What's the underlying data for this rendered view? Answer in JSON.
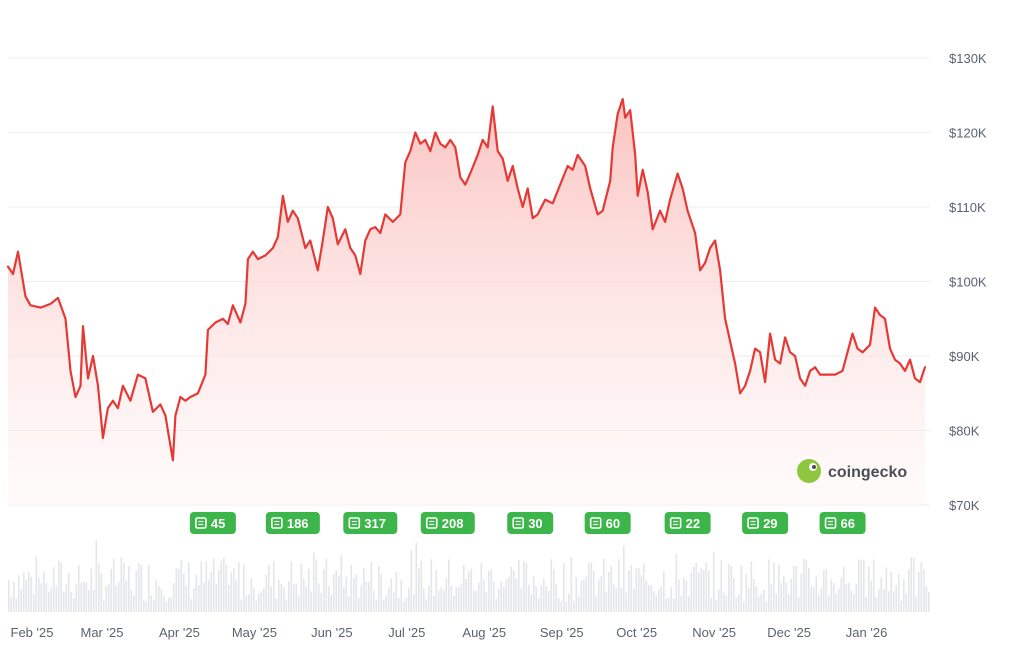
{
  "brand": {
    "name": "coingecko",
    "icon": "coingecko-gecko-logo"
  },
  "colors": {
    "line": "#e53935",
    "fill_top": "#f9b9b6",
    "fill_bottom": "#fff5f5",
    "badge": "#3cb54a",
    "volume": "#e4e6ea"
  },
  "chart_data": {
    "type": "area",
    "ylim": [
      70000,
      130000
    ],
    "y_ticks": [
      "$130K",
      "$120K",
      "$110K",
      "$100K",
      "$90K",
      "$80K",
      "$70K"
    ],
    "y_tick_values": [
      130000,
      120000,
      110000,
      100000,
      90000,
      80000,
      70000
    ],
    "x_ticks": [
      "Feb '25",
      "Mar '25",
      "Apr '25",
      "May '25",
      "Jun '25",
      "Jul '25",
      "Aug '25",
      "Sep '25",
      "Oct '25",
      "Nov '25",
      "Dec '25",
      "Jan '26"
    ],
    "x_range": [
      "2025-02-01",
      "2026-02-05"
    ],
    "grid": true,
    "series": [
      {
        "points": [
          [
            "2025-02-01",
            102000
          ],
          [
            "2025-02-03",
            101000
          ],
          [
            "2025-02-05",
            104000
          ],
          [
            "2025-02-08",
            98000
          ],
          [
            "2025-02-10",
            96800
          ],
          [
            "2025-02-14",
            96500
          ],
          [
            "2025-02-18",
            97000
          ],
          [
            "2025-02-21",
            97800
          ],
          [
            "2025-02-24",
            95000
          ],
          [
            "2025-02-26",
            88000
          ],
          [
            "2025-02-28",
            84500
          ],
          [
            "2025-03-02",
            86000
          ],
          [
            "2025-03-03",
            94000
          ],
          [
            "2025-03-05",
            87000
          ],
          [
            "2025-03-07",
            90000
          ],
          [
            "2025-03-09",
            86000
          ],
          [
            "2025-03-11",
            79000
          ],
          [
            "2025-03-13",
            83000
          ],
          [
            "2025-03-15",
            84000
          ],
          [
            "2025-03-17",
            83000
          ],
          [
            "2025-03-19",
            86000
          ],
          [
            "2025-03-22",
            84000
          ],
          [
            "2025-03-25",
            87500
          ],
          [
            "2025-03-28",
            87000
          ],
          [
            "2025-03-31",
            82500
          ],
          [
            "2025-04-03",
            83500
          ],
          [
            "2025-04-05",
            82000
          ],
          [
            "2025-04-07",
            78000
          ],
          [
            "2025-04-08",
            76000
          ],
          [
            "2025-04-09",
            82000
          ],
          [
            "2025-04-11",
            84500
          ],
          [
            "2025-04-13",
            84000
          ],
          [
            "2025-04-15",
            84500
          ],
          [
            "2025-04-18",
            85000
          ],
          [
            "2025-04-21",
            87500
          ],
          [
            "2025-04-22",
            93500
          ],
          [
            "2025-04-25",
            94500
          ],
          [
            "2025-04-28",
            95000
          ],
          [
            "2025-04-30",
            94300
          ],
          [
            "2025-05-02",
            96800
          ],
          [
            "2025-05-05",
            94500
          ],
          [
            "2025-05-07",
            97000
          ],
          [
            "2025-05-08",
            103000
          ],
          [
            "2025-05-10",
            104000
          ],
          [
            "2025-05-12",
            103000
          ],
          [
            "2025-05-15",
            103500
          ],
          [
            "2025-05-18",
            104500
          ],
          [
            "2025-05-20",
            106000
          ],
          [
            "2025-05-22",
            111500
          ],
          [
            "2025-05-24",
            108000
          ],
          [
            "2025-05-26",
            109500
          ],
          [
            "2025-05-28",
            108500
          ],
          [
            "2025-05-31",
            104500
          ],
          [
            "2025-06-02",
            105500
          ],
          [
            "2025-06-05",
            101500
          ],
          [
            "2025-06-07",
            105500
          ],
          [
            "2025-06-09",
            110000
          ],
          [
            "2025-06-11",
            108500
          ],
          [
            "2025-06-13",
            105000
          ],
          [
            "2025-06-16",
            107000
          ],
          [
            "2025-06-18",
            104500
          ],
          [
            "2025-06-20",
            103500
          ],
          [
            "2025-06-22",
            101000
          ],
          [
            "2025-06-24",
            105500
          ],
          [
            "2025-06-26",
            107000
          ],
          [
            "2025-06-28",
            107300
          ],
          [
            "2025-06-30",
            106500
          ],
          [
            "2025-07-02",
            109000
          ],
          [
            "2025-07-05",
            108000
          ],
          [
            "2025-07-08",
            109000
          ],
          [
            "2025-07-10",
            116000
          ],
          [
            "2025-07-12",
            117500
          ],
          [
            "2025-07-14",
            120000
          ],
          [
            "2025-07-16",
            118500
          ],
          [
            "2025-07-18",
            119000
          ],
          [
            "2025-07-20",
            117500
          ],
          [
            "2025-07-22",
            120000
          ],
          [
            "2025-07-24",
            118500
          ],
          [
            "2025-07-26",
            118000
          ],
          [
            "2025-07-28",
            119000
          ],
          [
            "2025-07-30",
            118000
          ],
          [
            "2025-08-01",
            114000
          ],
          [
            "2025-08-03",
            113000
          ],
          [
            "2025-08-05",
            114500
          ],
          [
            "2025-08-08",
            117000
          ],
          [
            "2025-08-10",
            119000
          ],
          [
            "2025-08-12",
            118000
          ],
          [
            "2025-08-14",
            123500
          ],
          [
            "2025-08-16",
            117500
          ],
          [
            "2025-08-18",
            116500
          ],
          [
            "2025-08-20",
            113500
          ],
          [
            "2025-08-22",
            115500
          ],
          [
            "2025-08-24",
            112500
          ],
          [
            "2025-08-26",
            110000
          ],
          [
            "2025-08-28",
            112500
          ],
          [
            "2025-08-30",
            108500
          ],
          [
            "2025-09-01",
            109000
          ],
          [
            "2025-09-04",
            111000
          ],
          [
            "2025-09-07",
            110500
          ],
          [
            "2025-09-10",
            113000
          ],
          [
            "2025-09-13",
            115500
          ],
          [
            "2025-09-15",
            115000
          ],
          [
            "2025-09-17",
            117000
          ],
          [
            "2025-09-20",
            115500
          ],
          [
            "2025-09-22",
            112500
          ],
          [
            "2025-09-25",
            109000
          ],
          [
            "2025-09-27",
            109500
          ],
          [
            "2025-09-30",
            113500
          ],
          [
            "2025-10-01",
            118000
          ],
          [
            "2025-10-03",
            122500
          ],
          [
            "2025-10-05",
            124500
          ],
          [
            "2025-10-06",
            122000
          ],
          [
            "2025-10-08",
            123000
          ],
          [
            "2025-10-10",
            117000
          ],
          [
            "2025-10-11",
            111500
          ],
          [
            "2025-10-13",
            115000
          ],
          [
            "2025-10-15",
            112000
          ],
          [
            "2025-10-17",
            107000
          ],
          [
            "2025-10-20",
            109500
          ],
          [
            "2025-10-22",
            108000
          ],
          [
            "2025-10-24",
            111000
          ],
          [
            "2025-10-27",
            114500
          ],
          [
            "2025-10-29",
            112500
          ],
          [
            "2025-10-31",
            109500
          ],
          [
            "2025-11-03",
            106500
          ],
          [
            "2025-11-05",
            101500
          ],
          [
            "2025-11-07",
            102500
          ],
          [
            "2025-11-09",
            104500
          ],
          [
            "2025-11-11",
            105500
          ],
          [
            "2025-11-13",
            101500
          ],
          [
            "2025-11-15",
            95000
          ],
          [
            "2025-11-17",
            92000
          ],
          [
            "2025-11-19",
            89000
          ],
          [
            "2025-11-21",
            85000
          ],
          [
            "2025-11-23",
            86000
          ],
          [
            "2025-11-25",
            88000
          ],
          [
            "2025-11-27",
            91000
          ],
          [
            "2025-11-29",
            90500
          ],
          [
            "2025-12-01",
            86500
          ],
          [
            "2025-12-03",
            93000
          ],
          [
            "2025-12-05",
            89500
          ],
          [
            "2025-12-07",
            89000
          ],
          [
            "2025-12-09",
            92500
          ],
          [
            "2025-12-11",
            90500
          ],
          [
            "2025-12-13",
            90000
          ],
          [
            "2025-12-15",
            87000
          ],
          [
            "2025-12-17",
            86000
          ],
          [
            "2025-12-19",
            88000
          ],
          [
            "2025-12-21",
            88500
          ],
          [
            "2025-12-23",
            87500
          ],
          [
            "2025-12-26",
            87500
          ],
          [
            "2025-12-29",
            87500
          ],
          [
            "2026-01-01",
            88000
          ],
          [
            "2026-01-03",
            90500
          ],
          [
            "2026-01-05",
            93000
          ],
          [
            "2026-01-07",
            91000
          ],
          [
            "2026-01-09",
            90500
          ],
          [
            "2026-01-12",
            91500
          ],
          [
            "2026-01-14",
            96500
          ],
          [
            "2026-01-16",
            95500
          ],
          [
            "2026-01-18",
            95000
          ],
          [
            "2026-01-20",
            91000
          ],
          [
            "2026-01-22",
            89500
          ],
          [
            "2026-01-24",
            89000
          ],
          [
            "2026-01-26",
            88000
          ],
          [
            "2026-01-28",
            89500
          ],
          [
            "2026-01-30",
            87000
          ],
          [
            "2026-02-01",
            86500
          ],
          [
            "2026-02-03",
            88500
          ]
        ]
      }
    ],
    "news_badges": [
      {
        "date": "2025-04-24",
        "label": "45"
      },
      {
        "date": "2025-05-26",
        "label": "186"
      },
      {
        "date": "2025-06-26",
        "label": "317"
      },
      {
        "date": "2025-07-27",
        "label": "208"
      },
      {
        "date": "2025-08-29",
        "label": "30"
      },
      {
        "date": "2025-09-29",
        "label": "60"
      },
      {
        "date": "2025-10-31",
        "label": "22"
      },
      {
        "date": "2025-12-01",
        "label": "29"
      },
      {
        "date": "2026-01-01",
        "label": "66"
      }
    ]
  }
}
